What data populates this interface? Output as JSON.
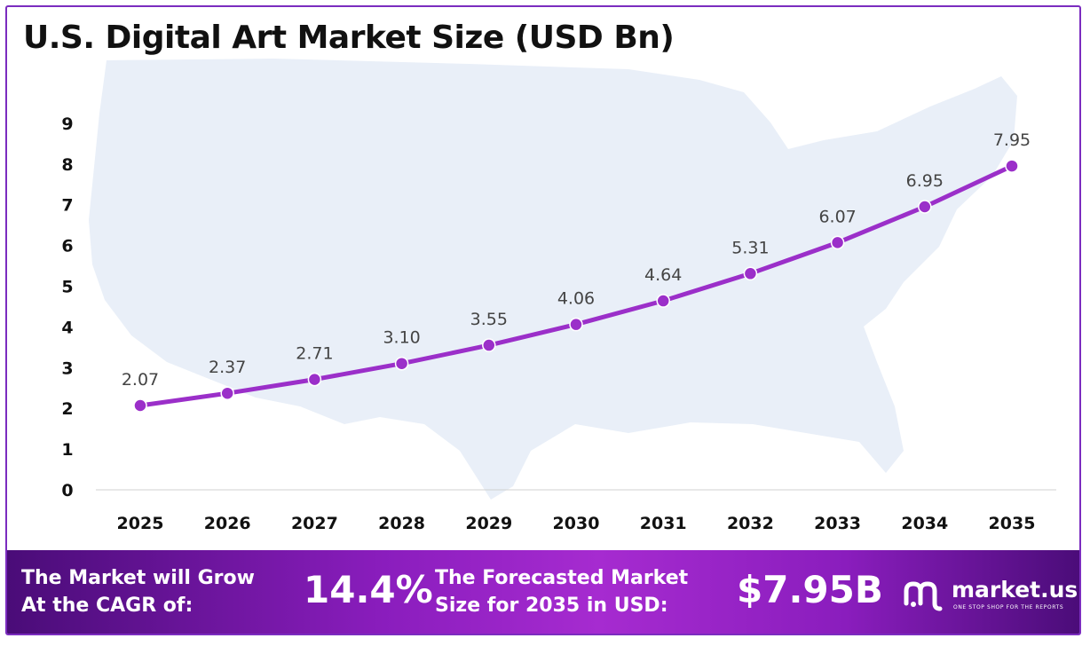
{
  "title": "U.S. Digital Art Market Size (USD Bn)",
  "colors": {
    "line": "#9b2fc9",
    "marker": "#9b2fc9",
    "banner_dark": "#4a0c78",
    "banner_light": "#a62bd0",
    "map_fill": "#e9eff8"
  },
  "chart_data": {
    "type": "line",
    "title": "U.S. Digital Art Market Size (USD Bn)",
    "xlabel": "",
    "ylabel": "",
    "categories": [
      "2025",
      "2026",
      "2027",
      "2028",
      "2029",
      "2030",
      "2031",
      "2032",
      "2033",
      "2034",
      "2035"
    ],
    "series": [
      {
        "values": [
          2.07,
          2.37,
          2.71,
          3.1,
          3.55,
          4.06,
          4.64,
          5.31,
          6.07,
          6.95,
          7.95
        ]
      }
    ],
    "data_labels": [
      "2.07",
      "2.37",
      "2.71",
      "3.10",
      "3.55",
      "4.06",
      "4.64",
      "5.31",
      "6.07",
      "6.95",
      "7.95"
    ],
    "yticks": [
      0,
      1,
      2,
      3,
      4,
      5,
      6,
      7,
      8,
      9
    ],
    "ylim": [
      0,
      9
    ],
    "grid": false,
    "legend": "none"
  },
  "banner": {
    "cagr_line1": "The Market will Grow",
    "cagr_line2": "At the CAGR of:",
    "cagr_value": "14.4%",
    "forecast_line1": "The Forecasted Market",
    "forecast_line2": "Size for 2035 in USD:",
    "forecast_value": "$7.95B"
  },
  "logo": {
    "name": "market.us",
    "tagline": "ONE STOP SHOP FOR THE REPORTS",
    "icon": "market-us-logo-icon"
  }
}
